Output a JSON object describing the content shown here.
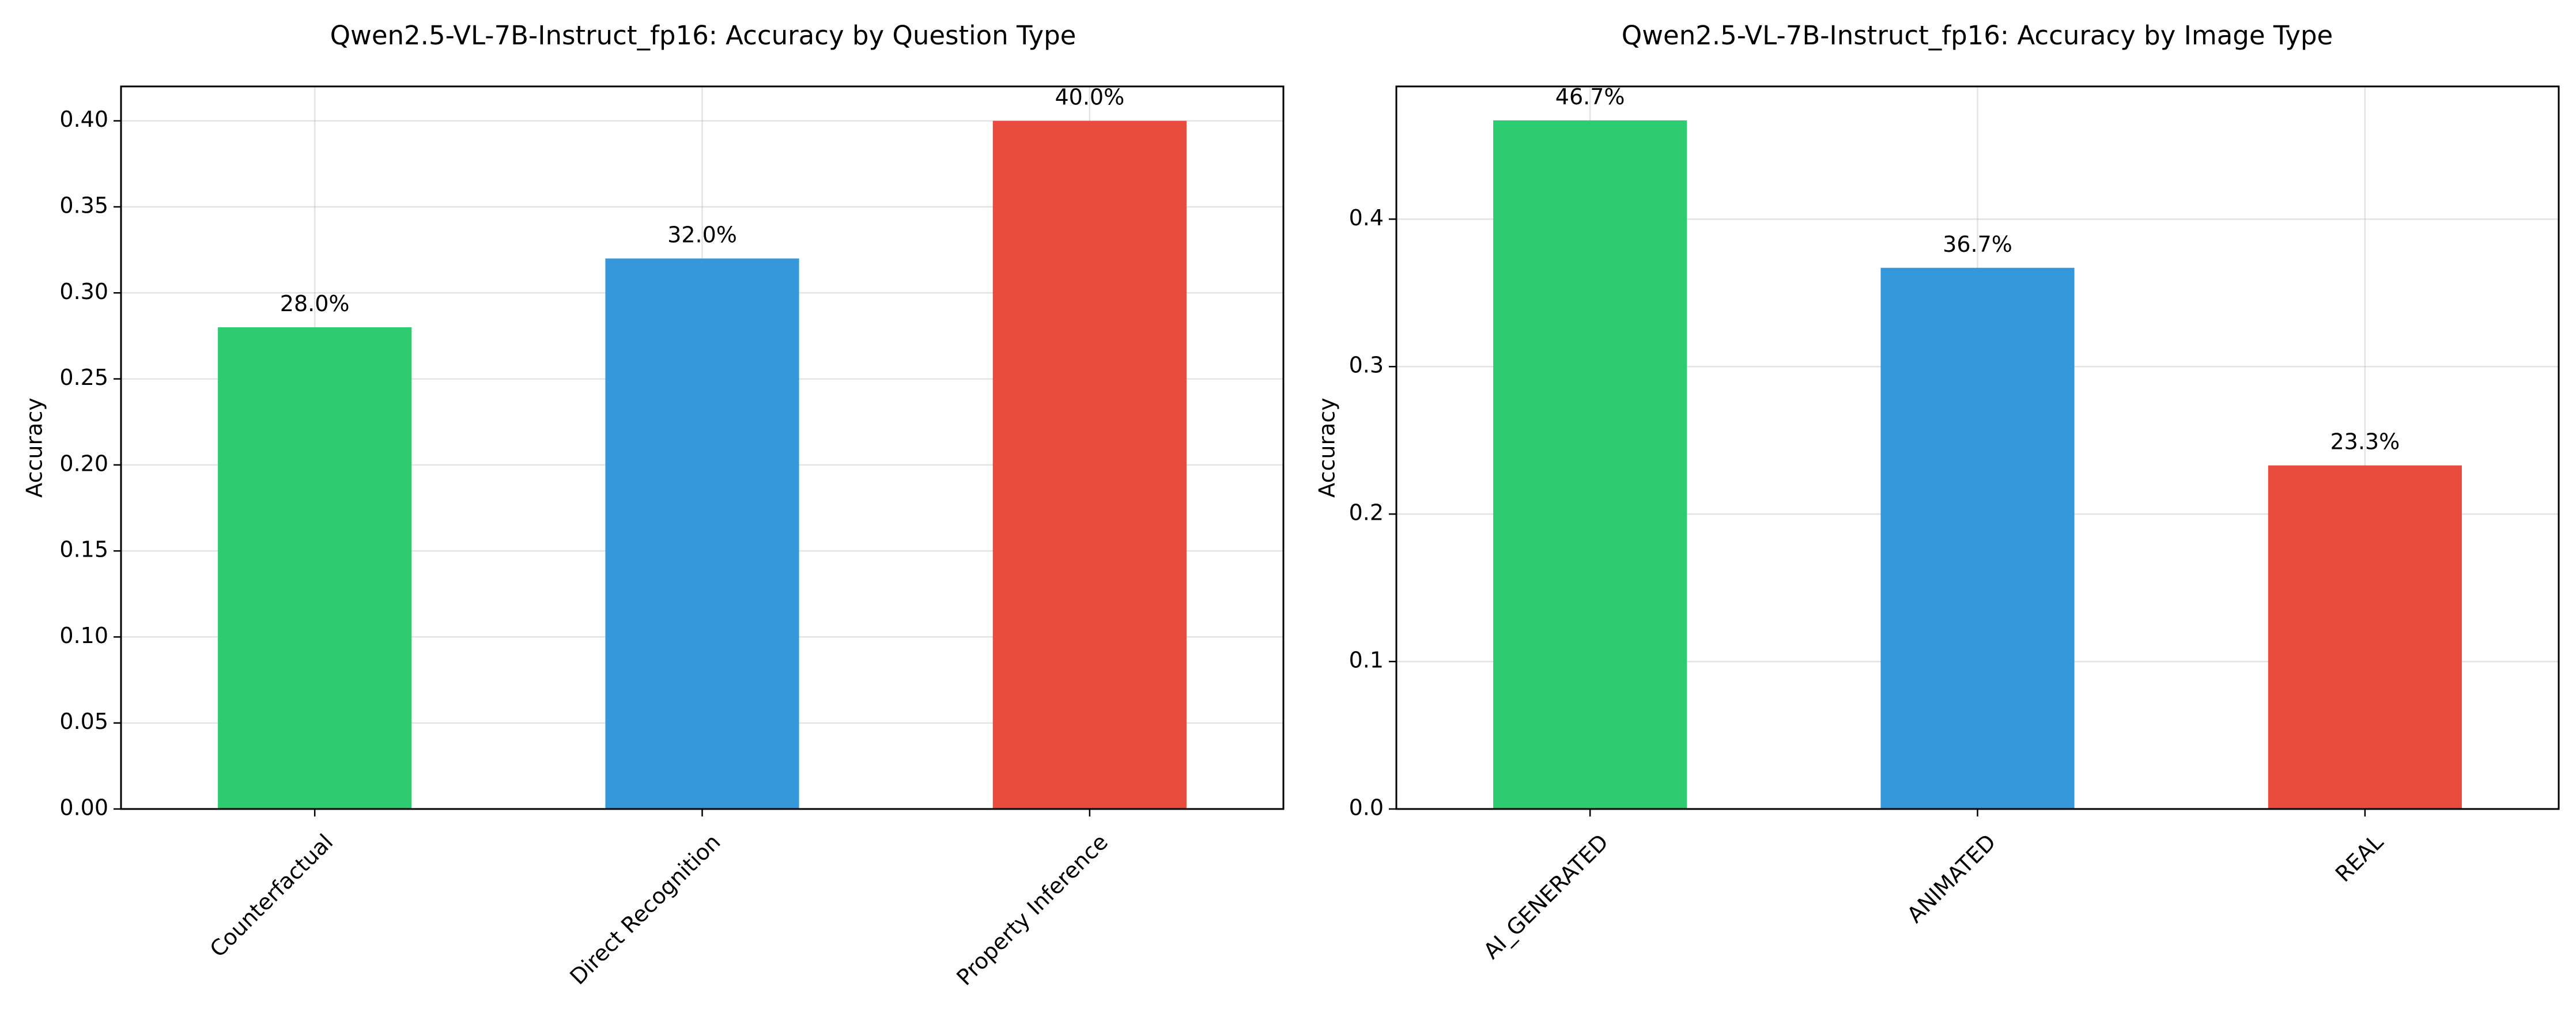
{
  "chart_data": [
    {
      "type": "bar",
      "title": "Qwen2.5-VL-7B-Instruct_fp16: Accuracy by Question Type",
      "xlabel": "",
      "ylabel": "Accuracy",
      "categories": [
        "Counterfactual",
        "Direct Recognition",
        "Property Inference"
      ],
      "values": [
        0.28,
        0.32,
        0.4
      ],
      "data_labels": [
        "28.0%",
        "32.0%",
        "40.0%"
      ],
      "colors": [
        "#2ecc71",
        "#3498db",
        "#e74c3c"
      ],
      "ylim": [
        0,
        0.42
      ],
      "yticks": [
        0.0,
        0.05,
        0.1,
        0.15,
        0.2,
        0.25,
        0.3,
        0.35,
        0.4
      ],
      "ytick_labels": [
        "0.00",
        "0.05",
        "0.10",
        "0.15",
        "0.20",
        "0.25",
        "0.30",
        "0.35",
        "0.40"
      ],
      "grid": true,
      "legend": "none"
    },
    {
      "type": "bar",
      "title": "Qwen2.5-VL-7B-Instruct_fp16: Accuracy by Image Type",
      "xlabel": "",
      "ylabel": "Accuracy",
      "categories": [
        "AI_GENERATED",
        "ANIMATED",
        "REAL"
      ],
      "values": [
        0.467,
        0.367,
        0.233
      ],
      "data_labels": [
        "46.7%",
        "36.7%",
        "23.3%"
      ],
      "colors": [
        "#2ecc71",
        "#3498db",
        "#e74c3c"
      ],
      "ylim": [
        0,
        0.49
      ],
      "yticks": [
        0.0,
        0.1,
        0.2,
        0.3,
        0.4
      ],
      "ytick_labels": [
        "0.0",
        "0.1",
        "0.2",
        "0.3",
        "0.4"
      ],
      "grid": true,
      "legend": "none"
    }
  ]
}
